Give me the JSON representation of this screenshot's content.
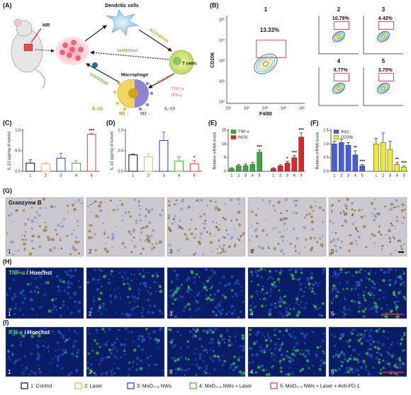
{
  "panel_labels": [
    "(A)",
    "(B)",
    "(C)",
    "(D)",
    "(E)",
    "(F)",
    "(G)",
    "(H)",
    "(I)"
  ],
  "diagram": {
    "dendritic_cells": "Dendritic cells",
    "nir": "NIR",
    "activation": "Activation",
    "t_cells": "T cells",
    "inhibition_top": "Inhibition",
    "inhibition_left": "Inhibition",
    "macrophage": "Macrophage",
    "induce": "Induce",
    "tnf": "TNF-α",
    "ifn": "IFN-γ",
    "il12": "IL-12",
    "il10": "IL-10",
    "m1": "M1 ↑",
    "m2": "M2 ↓"
  },
  "flow": {
    "x_label": "F4/80",
    "y_label": "CD206",
    "ticks": [
      "10¹",
      "10²",
      "10³",
      "10⁴",
      "10⁵"
    ],
    "plots": [
      {
        "label": "1",
        "percent": "13.33%"
      },
      {
        "label": "2",
        "percent": "10.79%"
      },
      {
        "label": "3",
        "percent": "4.42%"
      },
      {
        "label": "4",
        "percent": "8.77%"
      },
      {
        "label": "5",
        "percent": "3.70%"
      }
    ]
  },
  "chart_data": [
    {
      "type": "bar",
      "bar_style": "outline",
      "y_label": "IL-12 (pg/mg of tumor)",
      "categories": [
        "1",
        "2",
        "3",
        "4",
        "5"
      ],
      "values": [
        0.2,
        0.18,
        0.32,
        0.2,
        0.9
      ],
      "errors": [
        0.08,
        0.03,
        0.12,
        0.06,
        0.02
      ],
      "colors": [
        "#222222",
        "#f0b46a",
        "#3050c0",
        "#4cbb3c",
        "#e04848"
      ],
      "annotations": [
        null,
        null,
        null,
        null,
        "***"
      ],
      "ylim": [
        0,
        1.0
      ],
      "yticks": [
        {
          "value": 0,
          "label": "0.0"
        },
        0.5,
        {
          "value": 1,
          "label": "1.0"
        }
      ]
    },
    {
      "type": "bar",
      "bar_style": "outline",
      "y_label": "IL-10 (pg/mg of tumor)",
      "categories": [
        "1",
        "2",
        "3",
        "4",
        "5"
      ],
      "values": [
        0.4,
        0.35,
        0.75,
        0.25,
        0.18
      ],
      "errors": [
        0.02,
        0.08,
        0.2,
        0.1,
        0.08
      ],
      "colors": [
        "#222222",
        "#f0b46a",
        "#3050c0",
        "#4cbb3c",
        "#e04848"
      ],
      "annotations": [
        null,
        null,
        null,
        null,
        "*"
      ],
      "ylim": [
        0,
        1.0
      ],
      "yticks": [
        {
          "value": 0,
          "label": "0.0"
        },
        0.5,
        {
          "value": 1,
          "label": "1.0"
        }
      ]
    },
    {
      "type": "bar",
      "bar_style": "filled",
      "y_label": "Relative mRNA levels",
      "categories": [
        "1",
        "2",
        "3",
        "4",
        "5"
      ],
      "series": [
        {
          "name": "TNF-α",
          "color": "#3aaa3a",
          "values": [
            1,
            2,
            2,
            2.5,
            7
          ],
          "errors": [
            0.3,
            0.5,
            0.6,
            0.8,
            0.8
          ],
          "annotations": [
            null,
            null,
            null,
            null,
            "***"
          ]
        },
        {
          "name": "iNOS",
          "color": "#d42a2a",
          "values": [
            1,
            2,
            3,
            5,
            12.5
          ],
          "errors": [
            0.3,
            0.4,
            0.6,
            0.7,
            1.5
          ],
          "annotations": [
            null,
            null,
            "*",
            "***",
            "***"
          ]
        }
      ],
      "ylim": [
        0,
        15
      ],
      "yticks": [
        0,
        5,
        10,
        15
      ]
    },
    {
      "type": "bar",
      "bar_style": "filled",
      "y_label": "Relative mRNA levels",
      "categories": [
        "1",
        "2",
        "3",
        "4",
        "5"
      ],
      "series": [
        {
          "name": "Arg1",
          "color": "#4a5fd0",
          "values": [
            1.0,
            1.05,
            0.95,
            0.6,
            0.2
          ],
          "errors": [
            0.1,
            0.12,
            0.1,
            0.15,
            0.05
          ],
          "annotations": [
            null,
            null,
            null,
            "**",
            "***"
          ]
        },
        {
          "name": "CD206",
          "color": "#f2ea2c",
          "values": [
            1.0,
            1.05,
            0.8,
            0.25,
            0.15
          ],
          "errors": [
            0.2,
            0.35,
            0.3,
            0.08,
            0.05
          ],
          "annotations": [
            null,
            null,
            null,
            "**",
            "***"
          ]
        }
      ],
      "ylim": [
        0,
        1.5
      ],
      "yticks": [
        {
          "value": 0,
          "label": "0.0"
        },
        0.5,
        {
          "value": 1,
          "label": "1.0"
        },
        1.5
      ]
    }
  ],
  "images": {
    "g_title": "Granzyme B",
    "h_marker": "TNF-α",
    "i_marker": "IFN-γ",
    "stain": " / Hoechst",
    "numbers": [
      "1",
      "2",
      "3",
      "4",
      "5"
    ]
  },
  "legend": [
    {
      "label": "1: Control",
      "color": "#222222"
    },
    {
      "label": "2: Laser",
      "color": "#f0b46a"
    },
    {
      "label": "3: MoO₃₋ₓ NWs",
      "color": "#3050c0"
    },
    {
      "label": "4: MoO₃₋ₓ NWs + Laser",
      "color": "#4cbb3c"
    },
    {
      "label": "5: MoO₃₋ₓ NWs + Laser + Anti-PD-1",
      "color": "#e04848"
    }
  ]
}
